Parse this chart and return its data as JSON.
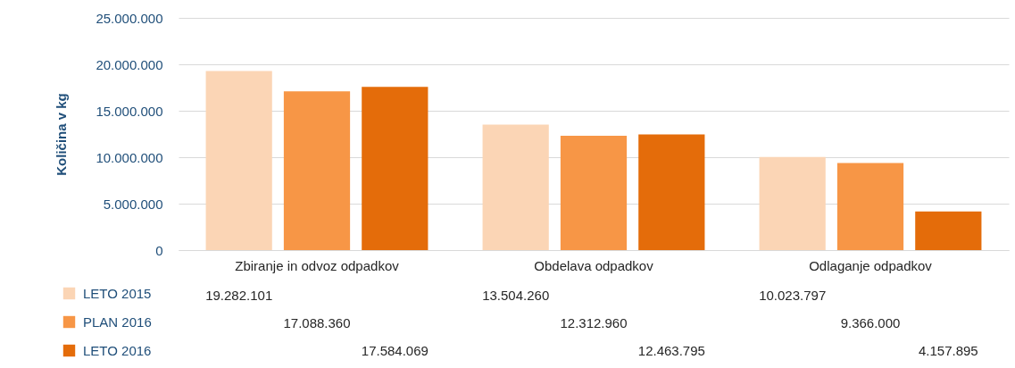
{
  "chart_data": {
    "type": "bar",
    "ylabel": "Količina v kg",
    "categories": [
      "Zbiranje in odvoz odpadkov",
      "Obdelava odpadkov",
      "Odlaganje odpadkov"
    ],
    "series": [
      {
        "name": "LETO 2015",
        "color": "#fbd5b5",
        "values": [
          19282101,
          13504260,
          10023797
        ],
        "value_labels": [
          "19.282.101",
          "13.504.260",
          "10.023.797"
        ]
      },
      {
        "name": "PLAN 2016",
        "color": "#f79646",
        "values": [
          17088360,
          12312960,
          9366000
        ],
        "value_labels": [
          "17.088.360",
          "12.312.960",
          "9.366.000"
        ]
      },
      {
        "name": "LETO 2016",
        "color": "#e46c0a",
        "values": [
          17584069,
          12463795,
          4157895
        ],
        "value_labels": [
          "17.584.069",
          "12.463.795",
          "4.157.895"
        ]
      }
    ],
    "ylim": [
      0,
      25000000
    ],
    "yticks": [
      0,
      {
        "value": 5000000,
        "label": "5.000.000"
      },
      {
        "value": 10000000,
        "label": "10.000.000"
      },
      {
        "value": 15000000,
        "label": "15.000.000"
      },
      {
        "value": 20000000,
        "label": "20.000.000"
      },
      {
        "value": 25000000,
        "label": "25.000.000"
      }
    ],
    "grid": "y",
    "legend": "bottom left"
  }
}
